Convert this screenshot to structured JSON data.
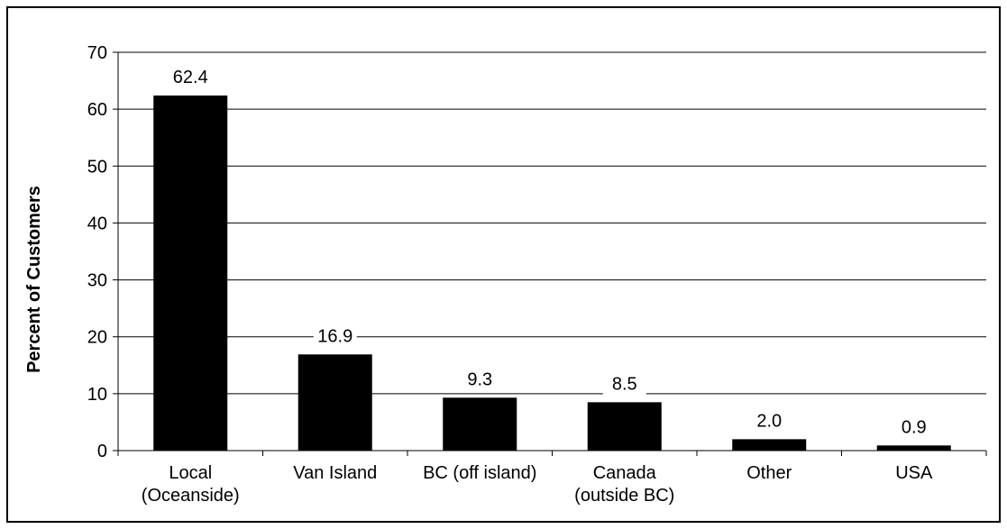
{
  "chart_data": {
    "type": "bar",
    "title": "",
    "xlabel": "",
    "ylabel": "Percent of Customers",
    "ylim": [
      0,
      70
    ],
    "yticks": [
      "0",
      "10",
      "20",
      "30",
      "40",
      "50",
      "60",
      "70"
    ],
    "grid": true,
    "categories": [
      [
        "Local",
        "(Oceanside)"
      ],
      [
        "Van Island"
      ],
      [
        "BC (off island)"
      ],
      [
        "Canada",
        "(outside BC)"
      ],
      [
        "Other"
      ],
      [
        "USA"
      ]
    ],
    "values": [
      62.4,
      16.9,
      9.3,
      8.5,
      2.0,
      0.9
    ],
    "value_labels": [
      "62.4",
      "16.9",
      "9.3",
      "8.5",
      "2.0",
      "0.9"
    ],
    "bar_color": "#000000"
  }
}
